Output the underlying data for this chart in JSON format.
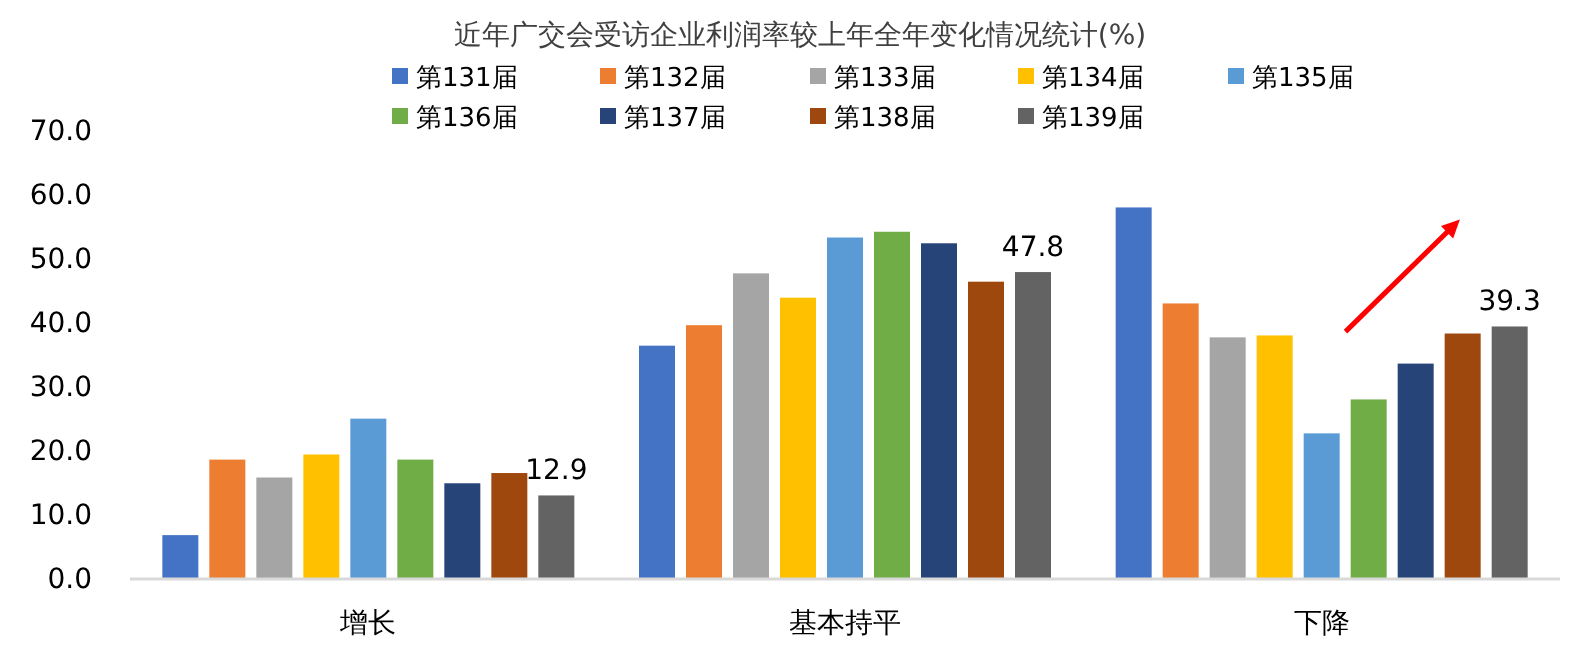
{
  "chart_data": {
    "type": "bar",
    "title": "近年广交会受访企业利润率较上年全年变化情况统计(%)",
    "categories": [
      "增长",
      "基本持平",
      "下降"
    ],
    "ylim": [
      0,
      70
    ],
    "yticks": [
      {
        "value": 0,
        "label": "0.0"
      },
      {
        "value": 10,
        "label": "10.0"
      },
      {
        "value": 20,
        "label": "20.0"
      },
      {
        "value": 30,
        "label": "30.0"
      },
      {
        "value": 40,
        "label": "40.0"
      },
      {
        "value": 50,
        "label": "50.0"
      },
      {
        "value": 60,
        "label": "60.0"
      },
      {
        "value": 70,
        "label": "70.0"
      }
    ],
    "grid": false,
    "legend": "top",
    "series": [
      {
        "name": "第131届",
        "color": "#4472c4",
        "values": [
          6.7,
          36.3,
          57.9
        ]
      },
      {
        "name": "第132届",
        "color": "#ed7d31",
        "values": [
          18.5,
          39.5,
          42.9
        ]
      },
      {
        "name": "第133届",
        "color": "#a5a5a5",
        "values": [
          15.7,
          47.6,
          37.6
        ]
      },
      {
        "name": "第134届",
        "color": "#ffc000",
        "values": [
          19.3,
          43.8,
          37.9
        ]
      },
      {
        "name": "第135届",
        "color": "#5b9bd5",
        "values": [
          24.9,
          53.2,
          22.6
        ]
      },
      {
        "name": "第136届",
        "color": "#70ad47",
        "values": [
          18.5,
          54.1,
          27.9
        ]
      },
      {
        "name": "第137届",
        "color": "#264478",
        "values": [
          14.8,
          52.3,
          33.5
        ]
      },
      {
        "name": "第138届",
        "color": "#9e480e",
        "values": [
          16.4,
          46.3,
          38.2
        ]
      },
      {
        "name": "第139届",
        "color": "#636363",
        "values": [
          12.9,
          47.8,
          39.3
        ],
        "value_labels": [
          "12.9",
          "47.8",
          "39.3"
        ]
      }
    ]
  }
}
